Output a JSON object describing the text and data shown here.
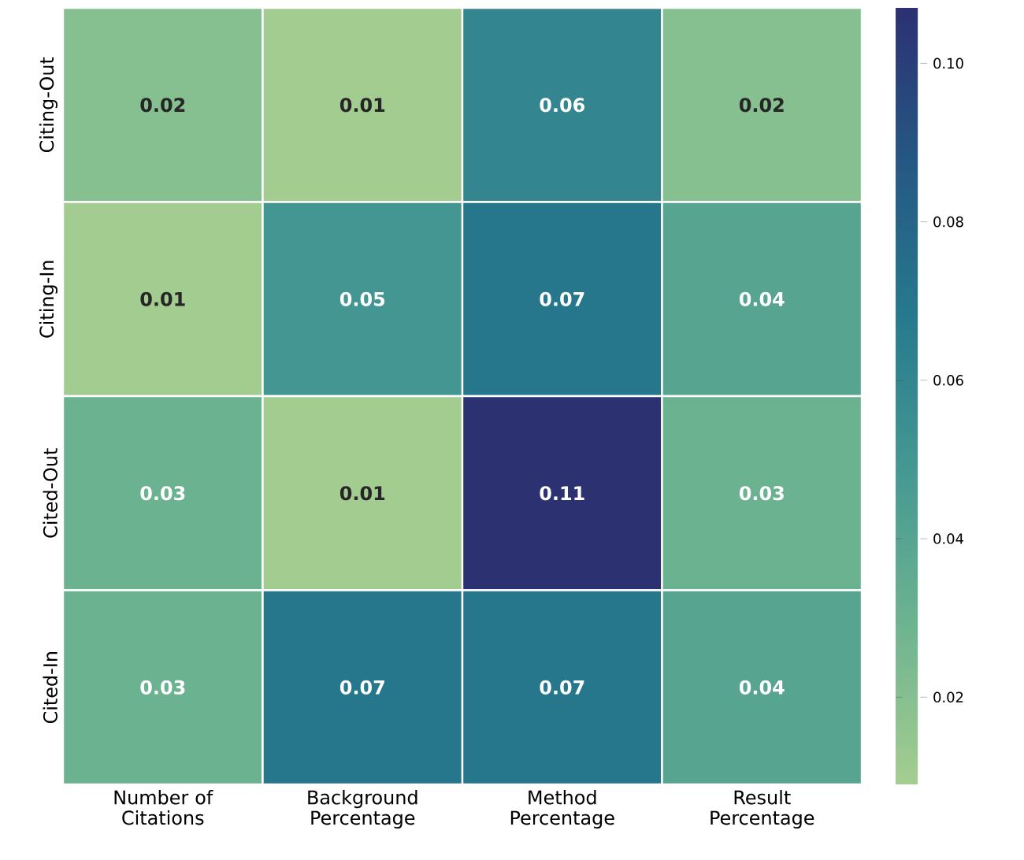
{
  "chart_data": {
    "type": "heatmap",
    "categories": [
      "Number of Citations",
      "Background Percentage",
      "Method Percentage",
      "Result Percentage"
    ],
    "y_categories": [
      "Citing-Out",
      "Citing-In",
      "Cited-Out",
      "Cited-In"
    ],
    "cells": [
      [
        0.02,
        0.01,
        0.06,
        0.02
      ],
      [
        0.01,
        0.05,
        0.07,
        0.04
      ],
      [
        0.03,
        0.01,
        0.11,
        0.03
      ],
      [
        0.03,
        0.07,
        0.07,
        0.04
      ]
    ],
    "data_labels": true,
    "clim": [
      0.009,
      0.107
    ],
    "cticks": [
      0.02,
      0.04,
      0.06,
      0.08,
      {
        "value": 0.1,
        "label": "0.10"
      }
    ]
  }
}
